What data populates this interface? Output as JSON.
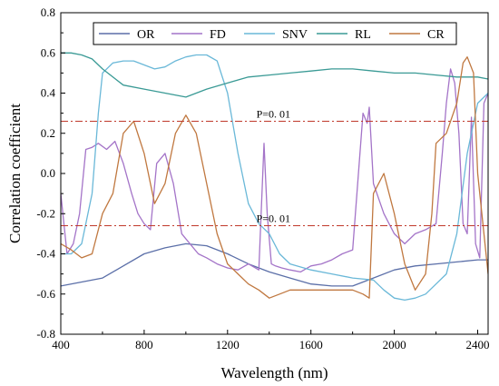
{
  "chart_data": {
    "type": "line",
    "xlabel": "Wavelength (nm)",
    "ylabel": "Correlation coefficient",
    "xlim": [
      400,
      2450
    ],
    "ylim": [
      -0.8,
      0.8
    ],
    "xticks": [
      400,
      800,
      1200,
      1600,
      2000,
      2400
    ],
    "yticks": [
      -0.8,
      -0.6,
      -0.4,
      -0.2,
      0.0,
      0.2,
      0.4,
      0.6,
      0.8
    ],
    "xtick_labels": [
      "400",
      "800",
      "1200",
      "1600",
      "2000",
      "2400"
    ],
    "ytick_labels": [
      "-0.8",
      "-0.6",
      "-0.4",
      "-0.2",
      "0.0",
      "0.2",
      "0.4",
      "0.6",
      "0.8"
    ],
    "grid": false,
    "legend": {
      "placement": "top",
      "entries": [
        "OR",
        "FD",
        "SNV",
        "RL",
        "CR"
      ]
    },
    "threshold_lines": [
      {
        "y": 0.26,
        "label": "P=0. 01",
        "color": "#c0392b"
      },
      {
        "y": -0.26,
        "label": "P=0. 01",
        "color": "#c0392b"
      }
    ],
    "series": [
      {
        "name": "OR",
        "color": "#5b6fa8",
        "x": [
          400,
          500,
          600,
          700,
          800,
          900,
          1000,
          1100,
          1200,
          1300,
          1400,
          1500,
          1600,
          1700,
          1800,
          1900,
          2000,
          2100,
          2200,
          2300,
          2400,
          2450
        ],
        "y": [
          -0.56,
          -0.54,
          -0.52,
          -0.46,
          -0.4,
          -0.37,
          -0.35,
          -0.36,
          -0.4,
          -0.45,
          -0.49,
          -0.52,
          -0.55,
          -0.56,
          -0.56,
          -0.52,
          -0.48,
          -0.46,
          -0.45,
          -0.44,
          -0.43,
          -0.43
        ]
      },
      {
        "name": "FD",
        "color": "#a474c8",
        "x": [
          400,
          430,
          460,
          490,
          520,
          550,
          580,
          620,
          660,
          700,
          740,
          770,
          800,
          830,
          860,
          900,
          940,
          980,
          1020,
          1060,
          1100,
          1150,
          1200,
          1250,
          1300,
          1350,
          1375,
          1390,
          1410,
          1430,
          1460,
          1500,
          1550,
          1600,
          1650,
          1700,
          1750,
          1800,
          1850,
          1870,
          1880,
          1900,
          1950,
          2000,
          2050,
          2100,
          2150,
          2200,
          2230,
          2250,
          2270,
          2290,
          2310,
          2330,
          2350,
          2370,
          2390,
          2410,
          2430,
          2450
        ],
        "y": [
          -0.1,
          -0.4,
          -0.35,
          -0.2,
          0.12,
          0.13,
          0.15,
          0.12,
          0.16,
          0.05,
          -0.1,
          -0.2,
          -0.25,
          -0.28,
          0.05,
          0.1,
          -0.05,
          -0.3,
          -0.35,
          -0.4,
          -0.42,
          -0.45,
          -0.47,
          -0.48,
          -0.45,
          -0.48,
          0.15,
          -0.2,
          -0.45,
          -0.46,
          -0.47,
          -0.48,
          -0.49,
          -0.46,
          -0.45,
          -0.43,
          -0.4,
          -0.38,
          0.3,
          0.25,
          0.33,
          -0.05,
          -0.2,
          -0.3,
          -0.35,
          -0.3,
          -0.28,
          -0.25,
          0.1,
          0.35,
          0.52,
          0.45,
          0.2,
          -0.25,
          -0.3,
          0.28,
          -0.35,
          -0.42,
          0.35,
          0.4
        ]
      },
      {
        "name": "SNV",
        "color": "#6ab8d8",
        "x": [
          400,
          450,
          500,
          550,
          580,
          600,
          650,
          700,
          750,
          800,
          850,
          900,
          950,
          1000,
          1050,
          1100,
          1150,
          1200,
          1250,
          1300,
          1350,
          1400,
          1450,
          1500,
          1600,
          1700,
          1800,
          1900,
          1950,
          2000,
          2050,
          2100,
          2150,
          2200,
          2250,
          2300,
          2350,
          2400,
          2450
        ],
        "y": [
          -0.4,
          -0.4,
          -0.35,
          -0.1,
          0.3,
          0.5,
          0.55,
          0.56,
          0.56,
          0.54,
          0.52,
          0.53,
          0.56,
          0.58,
          0.59,
          0.59,
          0.56,
          0.4,
          0.1,
          -0.15,
          -0.25,
          -0.3,
          -0.4,
          -0.45,
          -0.48,
          -0.5,
          -0.52,
          -0.53,
          -0.58,
          -0.62,
          -0.63,
          -0.62,
          -0.6,
          -0.55,
          -0.5,
          -0.3,
          0.1,
          0.35,
          0.4
        ]
      },
      {
        "name": "RL",
        "color": "#3a9a95",
        "x": [
          400,
          450,
          500,
          550,
          600,
          700,
          800,
          900,
          1000,
          1100,
          1200,
          1300,
          1400,
          1500,
          1600,
          1700,
          1800,
          1900,
          2000,
          2100,
          2200,
          2300,
          2400,
          2450
        ],
        "y": [
          0.6,
          0.6,
          0.59,
          0.57,
          0.52,
          0.44,
          0.42,
          0.4,
          0.38,
          0.42,
          0.45,
          0.48,
          0.49,
          0.5,
          0.51,
          0.52,
          0.52,
          0.51,
          0.5,
          0.5,
          0.49,
          0.48,
          0.48,
          0.47
        ]
      },
      {
        "name": "CR",
        "color": "#c07840",
        "x": [
          400,
          450,
          500,
          550,
          600,
          650,
          700,
          750,
          800,
          850,
          900,
          950,
          1000,
          1050,
          1100,
          1150,
          1200,
          1250,
          1300,
          1350,
          1400,
          1450,
          1500,
          1600,
          1700,
          1800,
          1850,
          1880,
          1900,
          1950,
          2000,
          2050,
          2100,
          2150,
          2180,
          2200,
          2250,
          2300,
          2330,
          2350,
          2380,
          2400,
          2450
        ],
        "y": [
          -0.35,
          -0.38,
          -0.42,
          -0.4,
          -0.2,
          -0.1,
          0.2,
          0.26,
          0.1,
          -0.15,
          -0.05,
          0.2,
          0.29,
          0.2,
          -0.05,
          -0.3,
          -0.45,
          -0.5,
          -0.55,
          -0.58,
          -0.62,
          -0.6,
          -0.58,
          -0.58,
          -0.58,
          -0.58,
          -0.6,
          -0.62,
          -0.1,
          0.0,
          -0.2,
          -0.45,
          -0.58,
          -0.5,
          -0.2,
          0.15,
          0.2,
          0.35,
          0.55,
          0.58,
          0.5,
          0.0,
          -0.5
        ]
      }
    ]
  }
}
